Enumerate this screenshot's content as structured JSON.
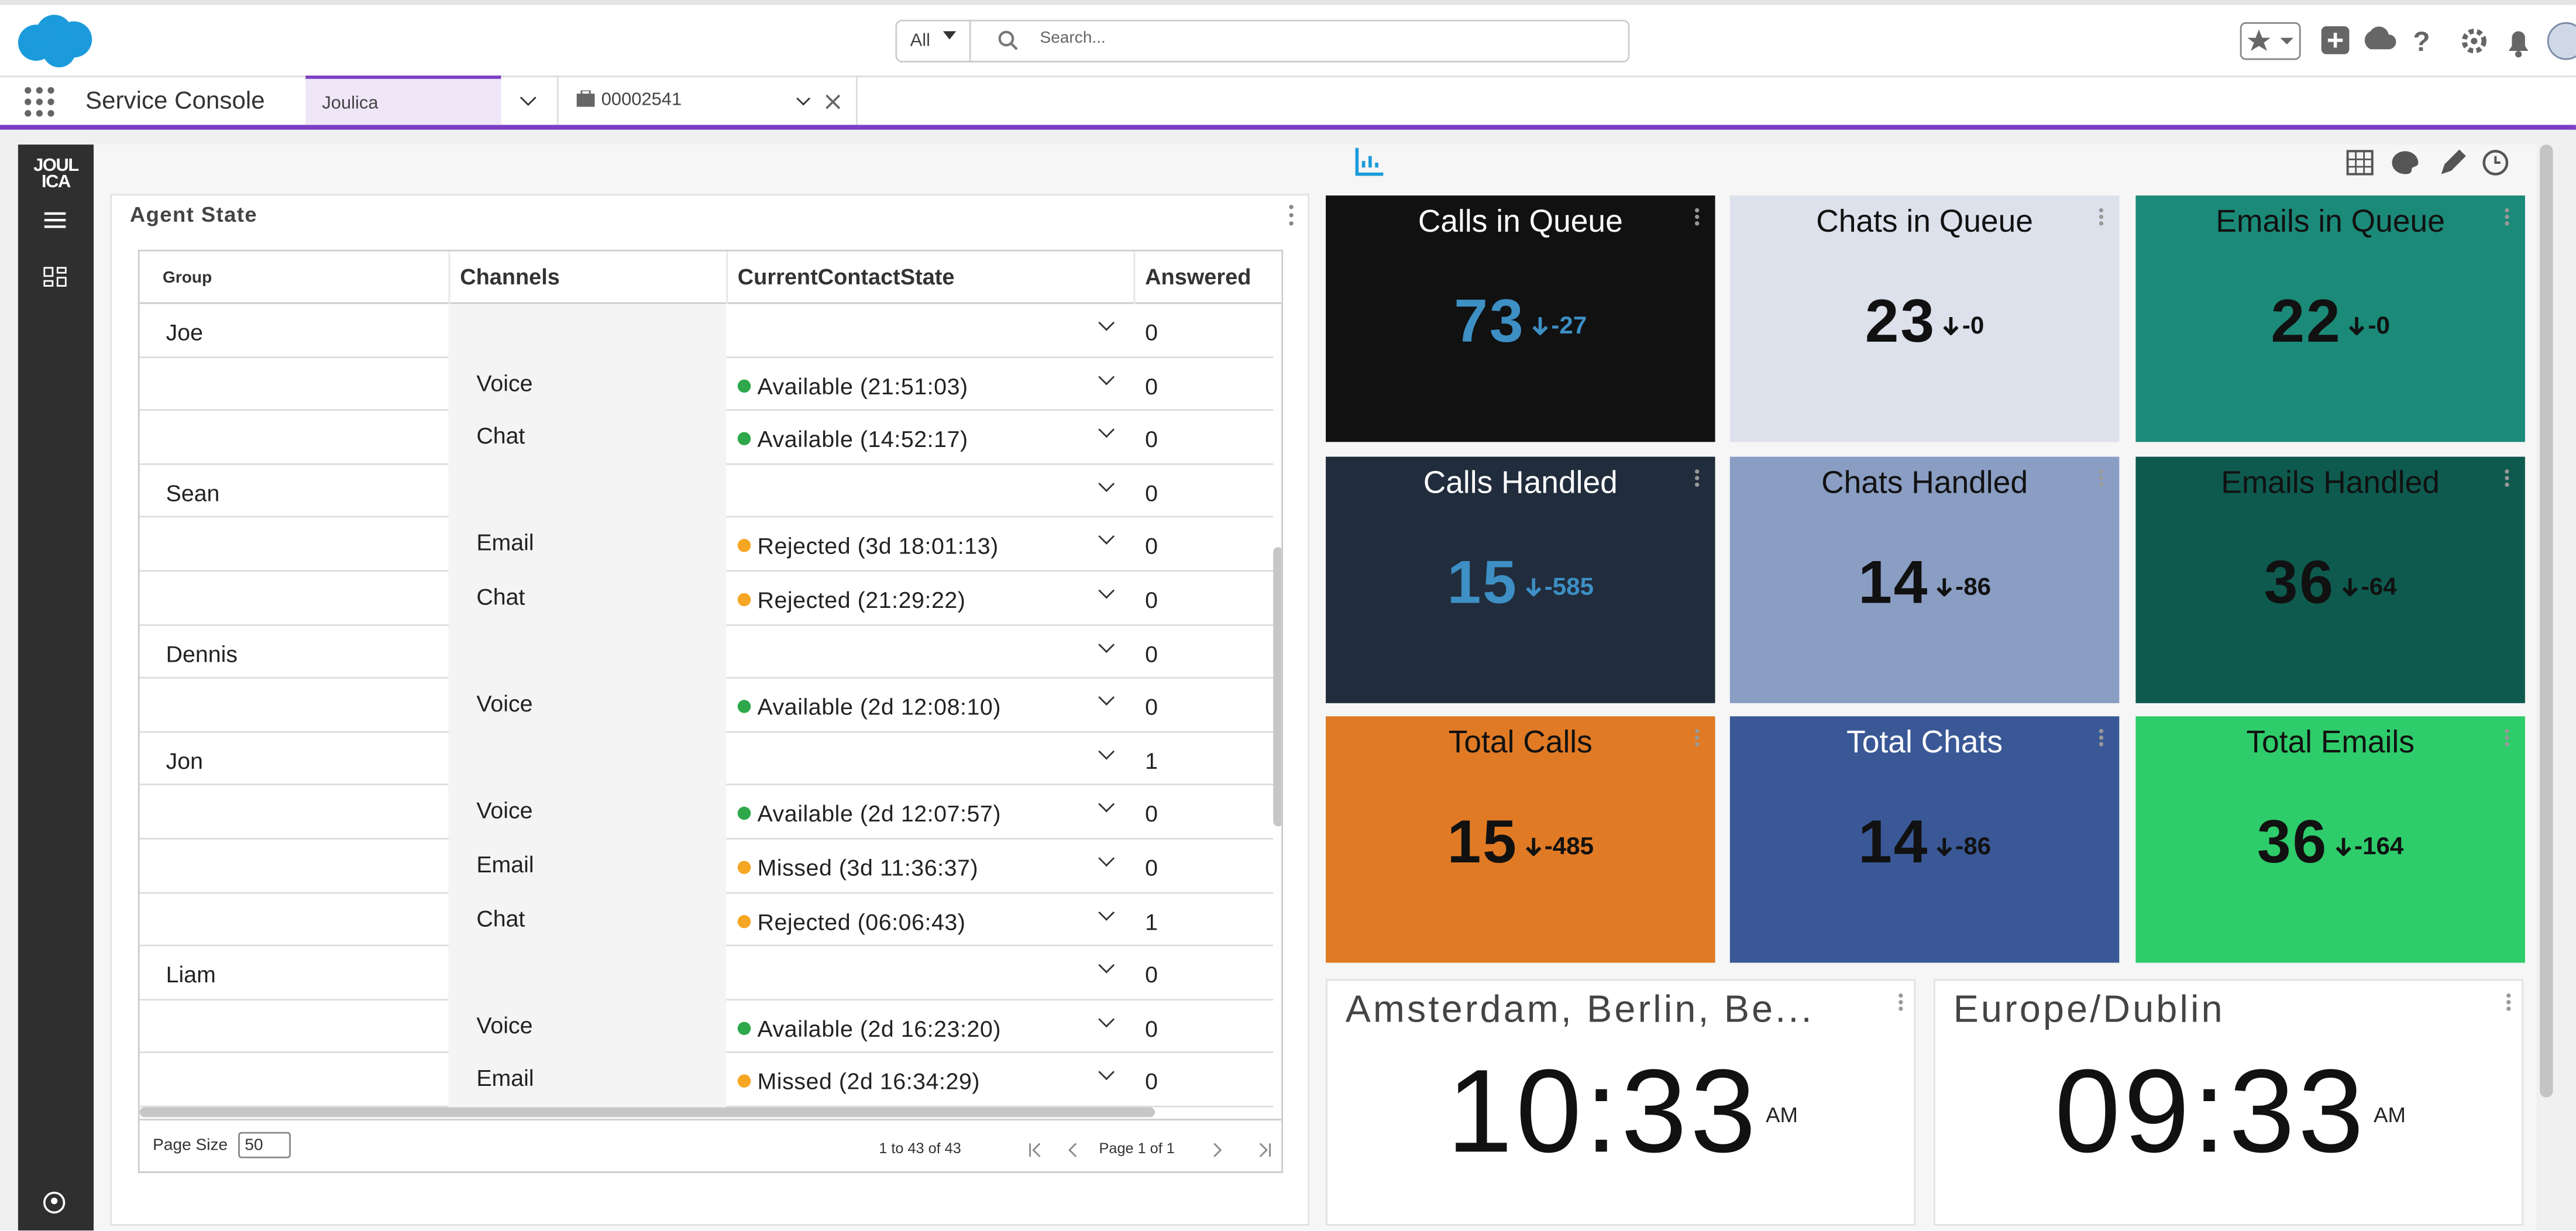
{
  "header": {
    "search_scope": "All",
    "search_placeholder": "Search..."
  },
  "nav": {
    "app_name": "Service Console",
    "tabs": [
      "Joulica",
      "00002541"
    ]
  },
  "sidebar": {
    "logo": "JOULICA"
  },
  "agent_state": {
    "title": "Agent State",
    "columns": [
      "Group",
      "Channels",
      "CurrentContactState",
      "Answered"
    ],
    "rows": [
      {
        "group": "Joe",
        "answered": 0
      },
      {
        "channel": "Voice",
        "state": "Available (21:51:03)",
        "dot": "#2ea84a",
        "answered": 0
      },
      {
        "channel": "Chat",
        "state": "Available (14:52:17)",
        "dot": "#2ea84a",
        "answered": 0
      },
      {
        "group": "Sean",
        "answered": 0
      },
      {
        "channel": "Email",
        "state": "Rejected (3d 18:01:13)",
        "dot": "#f5a623",
        "answered": 0
      },
      {
        "channel": "Chat",
        "state": "Rejected (21:29:22)",
        "dot": "#f5a623",
        "answered": 0
      },
      {
        "group": "Dennis",
        "answered": 0
      },
      {
        "channel": "Voice",
        "state": "Available (2d 12:08:10)",
        "dot": "#2ea84a",
        "answered": 0
      },
      {
        "group": "Jon",
        "answered": 1
      },
      {
        "channel": "Voice",
        "state": "Available (2d 12:07:57)",
        "dot": "#2ea84a",
        "answered": 0
      },
      {
        "channel": "Email",
        "state": "Missed (3d 11:36:37)",
        "dot": "#f5a623",
        "answered": 0
      },
      {
        "channel": "Chat",
        "state": "Rejected (06:06:43)",
        "dot": "#f5a623",
        "answered": 1
      },
      {
        "group": "Liam",
        "answered": 0
      },
      {
        "channel": "Voice",
        "state": "Available (2d 16:23:20)",
        "dot": "#2ea84a",
        "answered": 0
      },
      {
        "channel": "Email",
        "state": "Missed (2d 16:34:29)",
        "dot": "#f5a623",
        "answered": 0
      }
    ],
    "page_size_label": "Page Size",
    "page_size": "50",
    "range": "1 to 43 of 43",
    "page": "Page 1 of 1"
  },
  "tiles": [
    {
      "title": "Calls in Queue",
      "value": 73,
      "delta": -27,
      "background": "#111111",
      "title_color": "#ffffff",
      "value_color": "#3d8fc4"
    },
    {
      "title": "Chats in Queue",
      "value": 23,
      "delta": 0,
      "background": "#dde1ec",
      "title_color": "#111111",
      "value_color": "#111111"
    },
    {
      "title": "Emails in Queue",
      "value": 22,
      "delta": 0,
      "background": "#1b8a78",
      "title_color": "#111111",
      "value_color": "#111111"
    },
    {
      "title": "Calls Handled",
      "value": 15,
      "delta": -585,
      "background": "#212c3c",
      "title_color": "#ffffff",
      "value_color": "#3d8fc4"
    },
    {
      "title": "Chats Handled",
      "value": 14,
      "delta": -86,
      "background": "#8a9dc3",
      "title_color": "#111111",
      "value_color": "#111111"
    },
    {
      "title": "Emails Handled",
      "value": 36,
      "delta": -64,
      "background": "#0e5a4e",
      "title_color": "#111111",
      "value_color": "#111111"
    },
    {
      "title": "Total Calls",
      "value": 15,
      "delta": -485,
      "background": "#e07a25",
      "title_color": "#111111",
      "value_color": "#111111"
    },
    {
      "title": "Total Chats",
      "value": 14,
      "delta": -86,
      "background": "#3a5896",
      "title_color": "#ffffff",
      "value_color": "#111111"
    },
    {
      "title": "Total Emails",
      "value": 36,
      "delta": -164,
      "background": "#2ecc6a",
      "title_color": "#111111",
      "value_color": "#111111"
    }
  ],
  "clocks": [
    {
      "zone": "Amsterdam, Berlin, Be...",
      "time": "10:33",
      "meridiem": "AM"
    },
    {
      "zone": "Europe/Dublin",
      "time": "09:33",
      "meridiem": "AM"
    }
  ]
}
